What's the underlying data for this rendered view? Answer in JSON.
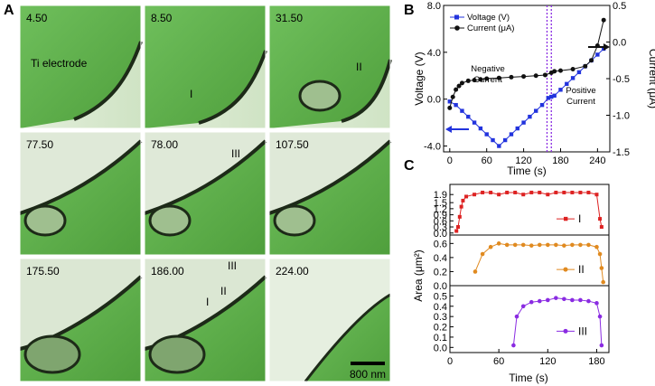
{
  "panel_labels": [
    "A",
    "B",
    "C"
  ],
  "panel_a": {
    "frames": [
      "4.50",
      "8.50",
      "31.50",
      "77.50",
      "78.00",
      "107.50",
      "175.50",
      "186.00",
      "224.00"
    ],
    "electrode_label": "Ti electrode",
    "markers": {
      "I": "I",
      "II": "II",
      "III": "III"
    },
    "scale_bar": "800 nm"
  },
  "chart_data": [
    {
      "type": "line",
      "panel": "B",
      "xlabel": "Time (s)",
      "ylabel": "Voltage (V)",
      "y2label": "Current (μA)",
      "xlim": [
        -10,
        260
      ],
      "ylim": [
        -4.5,
        8.0
      ],
      "y2lim": [
        -1.5,
        0.5
      ],
      "xticks": [
        "0",
        "60",
        "120",
        "180",
        "240"
      ],
      "yticks": [
        "-4.0",
        "0.0",
        "4.0",
        "8.0"
      ],
      "y2ticks": [
        "-1.5",
        "-1.0",
        "-0.5",
        "0.0",
        "0.5"
      ],
      "legend": "top-left",
      "annotations": [
        "Negative Current",
        "Positive Current"
      ],
      "colors": {
        "voltage": "#2233dd",
        "current": "#111111",
        "dashed": "#8a2be2"
      },
      "series": [
        {
          "name": "Voltage (V)",
          "axis": "left",
          "x": [
            0,
            10,
            20,
            30,
            40,
            50,
            60,
            70,
            80,
            90,
            100,
            110,
            120,
            130,
            140,
            150,
            160,
            165,
            170,
            180,
            190,
            200,
            210,
            220,
            230,
            240,
            250
          ],
          "y": [
            -0.2,
            -0.5,
            -1.0,
            -1.5,
            -2.0,
            -2.5,
            -3.0,
            -3.5,
            -4.0,
            -3.5,
            -3.0,
            -2.5,
            -2.0,
            -1.5,
            -1.0,
            -0.5,
            0.1,
            0.2,
            0.3,
            0.8,
            1.3,
            1.8,
            2.3,
            2.8,
            3.3,
            3.8,
            4.3
          ]
        },
        {
          "name": "Current (μA)",
          "axis": "right",
          "x": [
            0,
            5,
            10,
            15,
            20,
            30,
            40,
            50,
            60,
            80,
            100,
            120,
            140,
            155,
            165,
            170,
            180,
            200,
            220,
            230,
            240,
            250
          ],
          "y": [
            -0.9,
            -0.75,
            -0.65,
            -0.6,
            -0.56,
            -0.53,
            -0.52,
            -0.51,
            -0.5,
            -0.49,
            -0.48,
            -0.47,
            -0.46,
            -0.45,
            -0.42,
            -0.4,
            -0.39,
            -0.37,
            -0.33,
            -0.25,
            -0.05,
            0.3
          ]
        }
      ],
      "vlines": [
        158,
        165
      ]
    },
    {
      "type": "line",
      "panel": "C",
      "xlabel": "Time (s)",
      "ylabel": "Area (μm²)",
      "xlim": [
        0,
        195
      ],
      "xticks": [
        "0",
        "60",
        "120",
        "180"
      ],
      "subplots": [
        {
          "name": "I",
          "color": "#dd2222",
          "marker": "square",
          "ylim": [
            -0.1,
            2.4
          ],
          "yticks": [
            "0.0",
            "0.3",
            "0.6",
            "0.9",
            "1.2",
            "1.5",
            "1.9"
          ],
          "x": [
            8,
            10,
            12,
            14,
            16,
            20,
            30,
            40,
            50,
            60,
            70,
            80,
            90,
            100,
            110,
            120,
            130,
            140,
            150,
            160,
            170,
            180,
            184,
            186
          ],
          "y": [
            0.1,
            0.3,
            0.8,
            1.3,
            1.6,
            1.8,
            1.9,
            2.0,
            2.0,
            1.9,
            2.0,
            2.0,
            1.9,
            2.0,
            2.0,
            1.9,
            2.0,
            2.0,
            2.0,
            2.0,
            2.0,
            1.9,
            0.7,
            0.3
          ]
        },
        {
          "name": "II",
          "color": "#e08a20",
          "marker": "circle",
          "ylim": [
            0.0,
            0.72
          ],
          "yticks": [
            "0.0",
            "0.2",
            "0.4",
            "0.6"
          ],
          "x": [
            31,
            40,
            50,
            60,
            70,
            80,
            90,
            100,
            110,
            120,
            130,
            140,
            150,
            160,
            170,
            180,
            184,
            186,
            188
          ],
          "y": [
            0.2,
            0.45,
            0.55,
            0.6,
            0.58,
            0.58,
            0.58,
            0.57,
            0.58,
            0.58,
            0.58,
            0.57,
            0.58,
            0.58,
            0.58,
            0.55,
            0.45,
            0.25,
            0.05
          ]
        },
        {
          "name": "III",
          "color": "#8a2be2",
          "marker": "circle",
          "ylim": [
            -0.05,
            0.6
          ],
          "yticks": [
            "0.0",
            "0.1",
            "0.2",
            "0.3",
            "0.4",
            "0.5"
          ],
          "x": [
            78,
            82,
            90,
            100,
            110,
            120,
            130,
            140,
            150,
            160,
            170,
            180,
            184,
            186
          ],
          "y": [
            0.02,
            0.3,
            0.4,
            0.44,
            0.45,
            0.46,
            0.48,
            0.47,
            0.46,
            0.46,
            0.45,
            0.43,
            0.3,
            0.02
          ]
        }
      ]
    }
  ]
}
